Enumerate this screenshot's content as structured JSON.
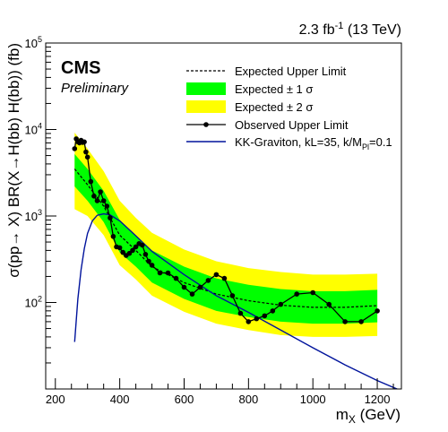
{
  "header": {
    "lumi_main": "2.3 fb",
    "lumi_sup": "-1",
    "lumi_rest": " (13 TeV)",
    "experiment": "CMS",
    "status": "Preliminary"
  },
  "chart_data": {
    "type": "line",
    "title": "",
    "xlabel": {
      "main": "m",
      "sub": "X",
      "rest": " (GeV)"
    },
    "ylabel": "σ(pp→ X) BR(X→H(bb) H(bb)) (fb)",
    "xlim": [
      170,
      1275
    ],
    "ylim": [
      10,
      100000
    ],
    "yscale": "log",
    "x_ticks": [
      200,
      400,
      600,
      800,
      1000,
      1200
    ],
    "y_ticks": [
      {
        "value": 100,
        "base": "10",
        "exp": "2"
      },
      {
        "value": 1000,
        "base": "10",
        "exp": "3"
      },
      {
        "value": 10000,
        "base": "10",
        "exp": "4"
      },
      {
        "value": 100000,
        "base": "10",
        "exp": "5"
      }
    ],
    "colors": {
      "band1": "#00ff00",
      "band2": "#ffff00",
      "observed": "#000000",
      "expected": "#000000",
      "graviton": "#00139c"
    },
    "legend": {
      "position": "top-right",
      "entries": [
        {
          "label": "Expected Upper Limit",
          "style": "dashed"
        },
        {
          "label": "Expected ± 1 σ",
          "style": "band1"
        },
        {
          "label": "Expected ± 2 σ",
          "style": "band2"
        },
        {
          "label": "Observed Upper Limit",
          "style": "observed"
        },
        {
          "label_main": "KK-Graviton, kL=35, k/M",
          "label_sub": "Pl",
          "label_rest": "=0.1",
          "style": "graviton"
        }
      ]
    },
    "x_expected": [
      260,
      300,
      350,
      400,
      450,
      500,
      600,
      700,
      800,
      900,
      1000,
      1100,
      1200
    ],
    "expected": [
      3500,
      2300,
      1300,
      600,
      400,
      260,
      170,
      125,
      105,
      93,
      88,
      88,
      92
    ],
    "band1_lo": [
      2200,
      1500,
      850,
      380,
      260,
      170,
      110,
      80,
      68,
      60,
      57,
      57,
      59
    ],
    "band1_hi": [
      5200,
      3500,
      1950,
      900,
      600,
      400,
      260,
      190,
      160,
      143,
      135,
      135,
      140
    ],
    "band2_lo": [
      1200,
      1000,
      600,
      270,
      185,
      120,
      78,
      57,
      48,
      42,
      40,
      40,
      41
    ],
    "band2_hi": [
      9200,
      6000,
      3300,
      1500,
      950,
      640,
      410,
      300,
      250,
      225,
      210,
      210,
      215
    ],
    "observed": {
      "x": [
        260,
        265,
        270,
        275,
        280,
        285,
        290,
        295,
        300,
        310,
        320,
        330,
        340,
        350,
        360,
        370,
        380,
        390,
        400,
        410,
        420,
        430,
        440,
        450,
        460,
        470,
        480,
        490,
        500,
        525,
        550,
        575,
        600,
        625,
        650,
        675,
        700,
        725,
        750,
        775,
        800,
        825,
        850,
        875,
        900,
        950,
        1000,
        1050,
        1100,
        1150,
        1200
      ],
      "y": [
        6000,
        7800,
        7200,
        7000,
        7500,
        7100,
        7200,
        5500,
        4800,
        2500,
        1700,
        1500,
        1900,
        1500,
        1300,
        950,
        580,
        440,
        430,
        380,
        350,
        370,
        400,
        440,
        480,
        460,
        360,
        300,
        270,
        220,
        220,
        190,
        150,
        125,
        150,
        180,
        210,
        190,
        120,
        75,
        60,
        65,
        70,
        80,
        95,
        125,
        130,
        95,
        60,
        60,
        80
      ]
    },
    "graviton": {
      "x": [
        260,
        270,
        280,
        290,
        300,
        315,
        330,
        350,
        370,
        400,
        450,
        500,
        600,
        700,
        800,
        900,
        1000,
        1100,
        1200,
        1275
      ],
      "y": [
        35,
        110,
        240,
        420,
        630,
        880,
        1020,
        1060,
        1030,
        880,
        590,
        390,
        210,
        120,
        77,
        48,
        30,
        19,
        12.5,
        9.5
      ]
    }
  }
}
